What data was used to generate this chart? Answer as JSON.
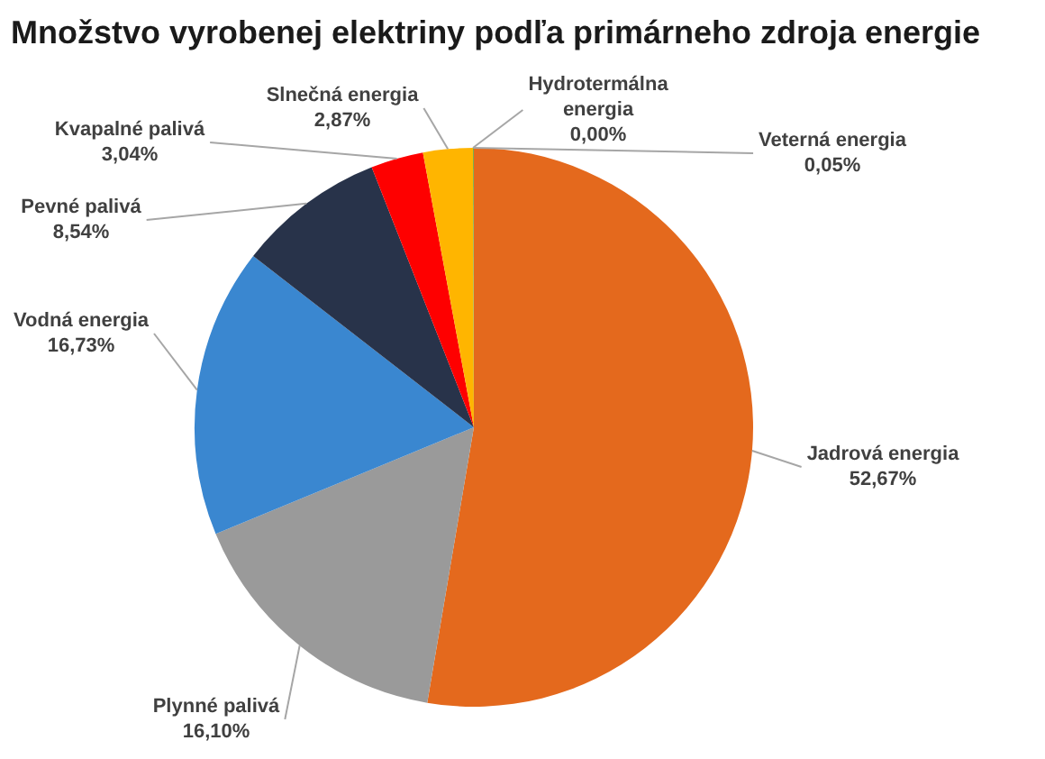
{
  "chart_data": {
    "type": "pie",
    "title": "Množstvo vyrobenej elektriny podľa primárneho zdroja energie",
    "categories": [
      "Jadrová energia",
      "Plynné palivá",
      "Vodná energia",
      "Pevné palivá",
      "Kvapalné palivá",
      "Slnečná energia",
      "Hydrotermálna energia",
      "Veterná energia"
    ],
    "values": [
      52.67,
      16.1,
      16.73,
      8.54,
      3.04,
      2.87,
      0.0,
      0.05
    ],
    "value_labels": [
      "52,67%",
      "16,10%",
      "16,73%",
      "8,54%",
      "3,04%",
      "2,87%",
      "0,00%",
      "0,05%"
    ],
    "colors": [
      "#e4691d",
      "#9a9a9a",
      "#3a87d0",
      "#28334a",
      "#fe0000",
      "#ffb500",
      "#4472c4",
      "#70ad47"
    ]
  }
}
